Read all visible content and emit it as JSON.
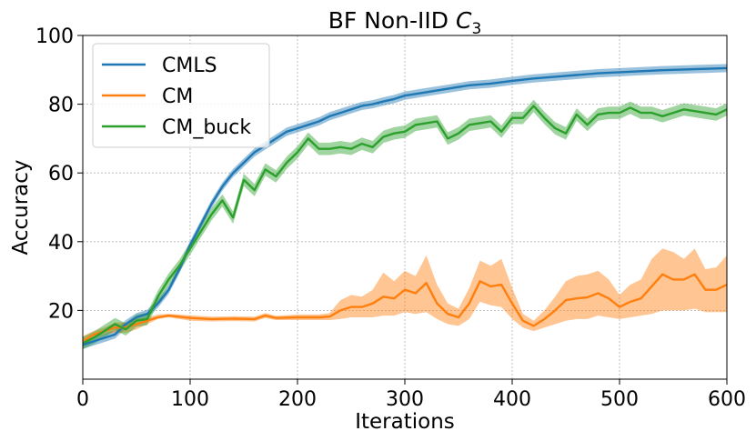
{
  "chart_data": {
    "type": "line",
    "title_main": "BF Non-IID ",
    "title_italic": "C",
    "title_sub": "3",
    "xlabel": "Iterations",
    "ylabel": "Accuracy",
    "xlim": [
      0,
      600
    ],
    "ylim": [
      0,
      100
    ],
    "xticks": [
      0,
      100,
      200,
      300,
      400,
      500,
      600
    ],
    "yticks": [
      20,
      40,
      60,
      80,
      100
    ],
    "grid": true,
    "legend_position": "upper-left",
    "series": [
      {
        "name": "CMLS",
        "color": "#1f77b4",
        "x": [
          0,
          10,
          20,
          30,
          40,
          50,
          60,
          70,
          80,
          90,
          100,
          110,
          120,
          130,
          140,
          150,
          160,
          170,
          180,
          190,
          200,
          210,
          220,
          230,
          240,
          250,
          260,
          270,
          280,
          290,
          300,
          320,
          340,
          360,
          380,
          400,
          420,
          440,
          460,
          480,
          500,
          520,
          540,
          560,
          580,
          600
        ],
        "y": [
          10,
          11,
          12,
          13,
          16,
          18,
          19,
          22,
          26,
          32,
          39,
          45,
          51,
          56,
          60,
          63,
          66,
          68,
          70,
          72,
          73,
          74,
          75,
          76.5,
          77.5,
          78.5,
          79.5,
          80,
          80.8,
          81.5,
          82.5,
          83.5,
          84.5,
          85.5,
          86,
          86.8,
          87.5,
          88,
          88.5,
          89,
          89.3,
          89.6,
          89.9,
          90.1,
          90.3,
          90.5
        ],
        "band": 1.2
      },
      {
        "name": "CM",
        "color": "#ff7f0e",
        "x": [
          0,
          10,
          20,
          30,
          40,
          50,
          60,
          70,
          80,
          100,
          120,
          140,
          160,
          170,
          180,
          200,
          220,
          230,
          240,
          250,
          260,
          270,
          280,
          290,
          300,
          310,
          320,
          330,
          340,
          350,
          360,
          370,
          380,
          390,
          400,
          410,
          420,
          430,
          440,
          450,
          460,
          470,
          480,
          490,
          500,
          510,
          520,
          530,
          540,
          550,
          560,
          570,
          580,
          590,
          600
        ],
        "y": [
          11,
          13,
          14,
          15,
          15,
          16,
          17,
          18,
          18.5,
          17.8,
          17.5,
          17.6,
          17.5,
          18.5,
          17.8,
          18,
          18,
          18.2,
          20,
          21,
          21,
          22,
          24,
          23.5,
          26,
          25,
          28,
          22,
          19,
          18,
          22,
          28.5,
          27,
          27.5,
          22,
          17,
          15.5,
          17.5,
          20,
          23,
          23.5,
          23.8,
          25,
          23.5,
          21,
          22.5,
          23.5,
          27,
          30.5,
          29,
          29,
          30.5,
          26,
          26,
          27.5
        ],
        "band_low": [
          9.5,
          12,
          13,
          13.5,
          13.5,
          14.5,
          16,
          17.5,
          18,
          17,
          16.8,
          16.9,
          16.8,
          17.8,
          17.2,
          17.2,
          17.2,
          17.2,
          17.5,
          18,
          18,
          18,
          18.5,
          18.5,
          19.5,
          19,
          19.5,
          17.5,
          16,
          15.5,
          17.5,
          22.5,
          21.5,
          21,
          17.5,
          15,
          14,
          15,
          16,
          17,
          17.5,
          17.5,
          18.5,
          18,
          17.5,
          18,
          18.5,
          19,
          20,
          20,
          20,
          20.5,
          19.5,
          19.5,
          19.5
        ],
        "band_high": [
          12.5,
          14,
          15,
          16.5,
          16.5,
          17.5,
          18,
          18.8,
          19,
          18.6,
          18.2,
          18.3,
          18.2,
          19.2,
          18.4,
          18.8,
          18.8,
          19.2,
          23,
          24.5,
          24,
          26,
          31,
          28.5,
          31.5,
          30,
          36,
          27.5,
          22,
          20.5,
          26.5,
          34.5,
          33,
          35,
          26.5,
          19,
          17,
          20,
          24,
          28.5,
          30,
          30.5,
          31.5,
          29,
          24.5,
          27.5,
          29,
          35,
          38,
          37,
          35,
          38,
          32,
          32.5,
          36
        ]
      },
      {
        "name": "CM_buck",
        "color": "#2ca02c",
        "x": [
          0,
          10,
          20,
          30,
          40,
          50,
          60,
          70,
          80,
          90,
          100,
          110,
          120,
          130,
          140,
          150,
          160,
          170,
          180,
          190,
          200,
          210,
          220,
          230,
          240,
          250,
          260,
          270,
          280,
          290,
          300,
          310,
          320,
          330,
          340,
          350,
          360,
          370,
          380,
          390,
          400,
          410,
          420,
          430,
          440,
          450,
          460,
          470,
          480,
          490,
          500,
          510,
          520,
          530,
          540,
          550,
          560,
          570,
          580,
          590,
          600
        ],
        "y": [
          10.5,
          12,
          14,
          16,
          14.5,
          17,
          17.5,
          24,
          29,
          33,
          38,
          43,
          48,
          52,
          47,
          58,
          55,
          61,
          59,
          63,
          66,
          70,
          67,
          67,
          67.5,
          67,
          68.5,
          67.5,
          70.5,
          71.5,
          72,
          74,
          74.5,
          75,
          70,
          71.5,
          74,
          74.5,
          75,
          72,
          76,
          76,
          79.5,
          76,
          73,
          71.5,
          77,
          74,
          77,
          77.5,
          77.5,
          79,
          77.5,
          77.5,
          76.5,
          77.5,
          78.5,
          78,
          77.5,
          77,
          78.5
        ],
        "band": 1.8
      }
    ]
  }
}
